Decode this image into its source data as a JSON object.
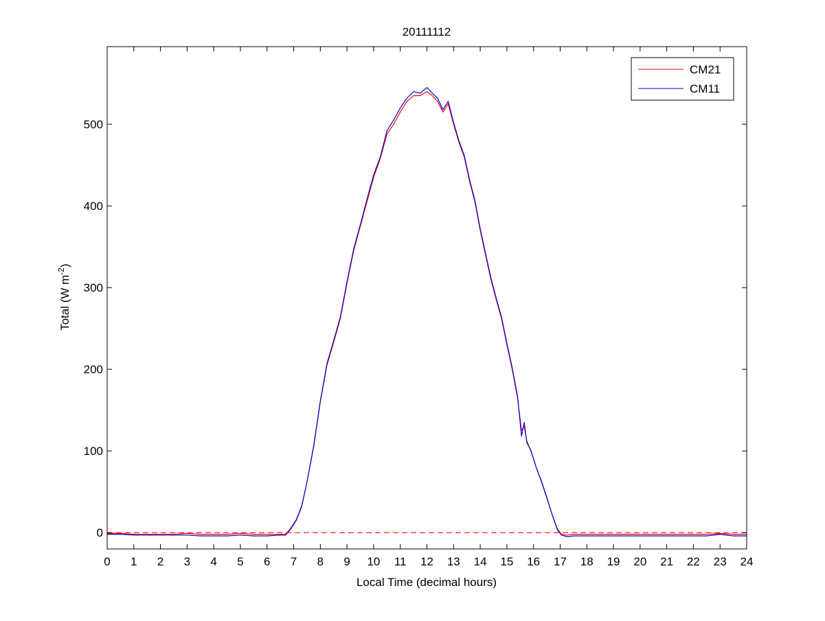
{
  "chart_data": {
    "type": "line",
    "title": "20111112",
    "xlabel": "Local Time (decimal hours)",
    "ylabel_prefix": "Total (W m",
    "ylabel_sup": "-2",
    "ylabel_suffix": ")",
    "xlim": [
      0,
      24
    ],
    "ylim": [
      -20,
      595
    ],
    "xticks": [
      0,
      1,
      2,
      3,
      4,
      5,
      6,
      7,
      8,
      9,
      10,
      11,
      12,
      13,
      14,
      15,
      16,
      17,
      18,
      19,
      20,
      21,
      22,
      23,
      24
    ],
    "yticks": [
      0,
      100,
      200,
      300,
      400,
      500
    ],
    "grid": false,
    "legend_position": "top-right",
    "reference_line": {
      "y": 0,
      "color": "#ff0000",
      "style": "dashed"
    },
    "series": [
      {
        "name": "CM21",
        "color": "#ff0000",
        "x": [
          0,
          0.5,
          1,
          1.5,
          2,
          2.5,
          3,
          3.5,
          4,
          4.5,
          5,
          5.5,
          6,
          6.5,
          6.7,
          6.9,
          7.1,
          7.3,
          7.5,
          7.75,
          8,
          8.25,
          8.5,
          8.75,
          9,
          9.25,
          9.5,
          9.75,
          10,
          10.25,
          10.5,
          10.75,
          11,
          11.25,
          11.5,
          11.75,
          12,
          12.2,
          12.4,
          12.6,
          12.8,
          13,
          13.2,
          13.4,
          13.6,
          13.8,
          14,
          14.2,
          14.4,
          14.6,
          14.8,
          15,
          15.2,
          15.4,
          15.55,
          15.65,
          15.75,
          15.9,
          16.1,
          16.3,
          16.5,
          16.7,
          16.9,
          17.05,
          17.25,
          17.5,
          18,
          18.5,
          19,
          19.5,
          20,
          20.5,
          21,
          21.5,
          22,
          22.5,
          23,
          23.5,
          24
        ],
        "y": [
          -1,
          -1,
          -2,
          -2,
          -2,
          -2,
          -1,
          -2,
          -2,
          -2,
          -1,
          -2,
          -2,
          -2,
          -2,
          6,
          16,
          33,
          62,
          105,
          160,
          205,
          233,
          262,
          305,
          345,
          375,
          405,
          435,
          458,
          488,
          500,
          515,
          528,
          535,
          535,
          540,
          535,
          528,
          515,
          525,
          500,
          478,
          460,
          430,
          405,
          370,
          340,
          310,
          285,
          262,
          230,
          200,
          165,
          125,
          130,
          112,
          100,
          80,
          62,
          42,
          22,
          4,
          -2,
          -3,
          -2,
          -2,
          -2,
          -2,
          -2,
          -2,
          -2,
          -2,
          -2,
          -2,
          -2,
          -1,
          -2,
          -2
        ]
      },
      {
        "name": "CM11",
        "color": "#0000cc",
        "x": [
          0,
          0.5,
          1,
          1.5,
          2,
          2.5,
          3,
          3.5,
          4,
          4.5,
          5,
          5.5,
          6,
          6.5,
          6.7,
          6.9,
          7.1,
          7.3,
          7.5,
          7.75,
          8,
          8.25,
          8.5,
          8.75,
          9,
          9.25,
          9.5,
          9.75,
          10,
          10.25,
          10.5,
          10.75,
          11,
          11.25,
          11.5,
          11.75,
          12,
          12.2,
          12.4,
          12.6,
          12.8,
          13,
          13.2,
          13.4,
          13.6,
          13.8,
          14,
          14.2,
          14.4,
          14.6,
          14.8,
          15,
          15.2,
          15.4,
          15.55,
          15.65,
          15.75,
          15.9,
          16.1,
          16.3,
          16.5,
          16.7,
          16.9,
          17.05,
          17.25,
          17.5,
          18,
          18.5,
          19,
          19.5,
          20,
          20.5,
          21,
          21.5,
          22,
          22.5,
          23,
          23.5,
          24
        ],
        "y": [
          -2,
          -2,
          -3,
          -3,
          -3,
          -3,
          -3,
          -4,
          -4,
          -4,
          -3,
          -4,
          -4,
          -3,
          -3,
          5,
          15,
          32,
          62,
          106,
          161,
          207,
          235,
          264,
          307,
          347,
          377,
          408,
          438,
          460,
          492,
          505,
          520,
          532,
          540,
          538,
          545,
          538,
          532,
          518,
          528,
          502,
          480,
          462,
          432,
          407,
          372,
          342,
          312,
          287,
          264,
          232,
          202,
          167,
          118,
          135,
          110,
          101,
          80,
          63,
          43,
          22,
          3,
          -3,
          -5,
          -4,
          -4,
          -4,
          -4,
          -4,
          -4,
          -4,
          -4,
          -4,
          -4,
          -4,
          -2,
          -4,
          -4
        ]
      }
    ]
  }
}
